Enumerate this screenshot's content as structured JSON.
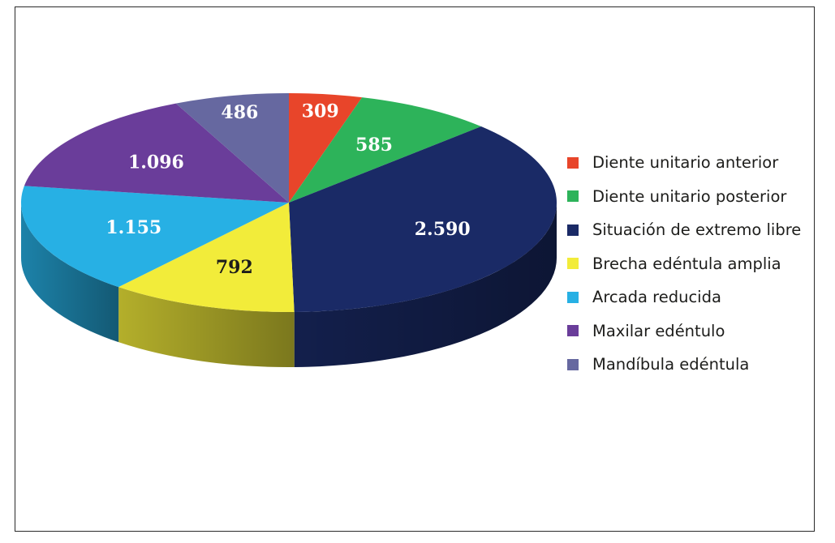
{
  "chart_data": {
    "type": "pie",
    "style": "3d",
    "legend_position": "right",
    "categories": [
      "Diente unitario anterior",
      "Diente unitario posterior",
      "Situación de extremo libre",
      "Brecha edéntula amplia",
      "Arcada reducida",
      "Maxilar edéntulo",
      "Mandíbula edéntula"
    ],
    "values": [
      309,
      585,
      2590,
      792,
      1155,
      1096,
      486
    ],
    "value_labels": [
      "309",
      "585",
      "2.590",
      "792",
      "1.155",
      "1.096",
      "486"
    ],
    "colors": [
      "#e8452a",
      "#2db35a",
      "#1a2a66",
      "#f2ec3a",
      "#27b0e4",
      "#6a3d9a",
      "#6668a0"
    ],
    "label_colors": [
      "#ffffff",
      "#ffffff",
      "#ffffff",
      "#1d1d1b",
      "#ffffff",
      "#ffffff",
      "#ffffff"
    ]
  }
}
